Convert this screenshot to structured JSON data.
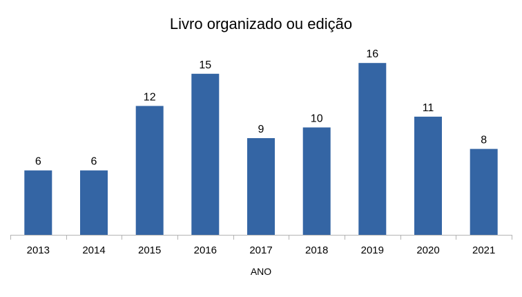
{
  "chart_data": {
    "type": "bar",
    "title": "Livro organizado ou edição",
    "xlabel": "ANO",
    "ylabel": "",
    "categories": [
      "2013",
      "2014",
      "2015",
      "2016",
      "2017",
      "2018",
      "2019",
      "2020",
      "2021"
    ],
    "values": [
      6,
      6,
      12,
      15,
      9,
      10,
      16,
      11,
      8
    ],
    "ylim": [
      0,
      18
    ],
    "grid": false,
    "legend": "none",
    "data_labels": true,
    "bar_color": "#3465A4",
    "axis_color": "#B3B3B3"
  }
}
